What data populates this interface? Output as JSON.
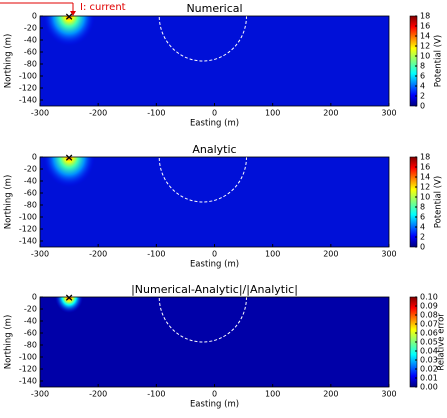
{
  "annotation": "I: current",
  "chart_data": [
    {
      "type": "heatmap",
      "title": "Numerical",
      "xlabel": "Easting (m)",
      "ylabel": "Northing (m)",
      "colorbar_label": "Potential (V)",
      "xlim": [
        -300,
        300
      ],
      "ylim": [
        -150,
        0
      ],
      "xticks": [
        -300,
        -200,
        -100,
        0,
        100,
        200,
        300
      ],
      "yticks": [
        0,
        -20,
        -40,
        -60,
        -80,
        -100,
        -120,
        -140
      ],
      "clim": [
        0,
        18
      ],
      "cticks": [
        0,
        2,
        4,
        6,
        8,
        10,
        12,
        14,
        16,
        18
      ],
      "source": {
        "x": -250,
        "y": 0
      },
      "circle": {
        "x": -20,
        "y": 0,
        "r": 75
      }
    },
    {
      "type": "heatmap",
      "title": "Analytic",
      "xlabel": "Easting (m)",
      "ylabel": "Northing (m)",
      "colorbar_label": "Potential (V)",
      "xlim": [
        -300,
        300
      ],
      "ylim": [
        -150,
        0
      ],
      "xticks": [
        -300,
        -200,
        -100,
        0,
        100,
        200,
        300
      ],
      "yticks": [
        0,
        -20,
        -40,
        -60,
        -80,
        -100,
        -120,
        -140
      ],
      "clim": [
        0,
        18
      ],
      "cticks": [
        0,
        2,
        4,
        6,
        8,
        10,
        12,
        14,
        16,
        18
      ],
      "source": {
        "x": -250,
        "y": 0
      },
      "circle": {
        "x": -20,
        "y": 0,
        "r": 75
      }
    },
    {
      "type": "heatmap",
      "title": "|Numerical-Analytic|/|Analytic|",
      "xlabel": "Easting (m)",
      "ylabel": "Northing (m)",
      "colorbar_label": "Relative error",
      "xlim": [
        -300,
        300
      ],
      "ylim": [
        -150,
        0
      ],
      "xticks": [
        -300,
        -200,
        -100,
        0,
        100,
        200,
        300
      ],
      "yticks": [
        0,
        -20,
        -40,
        -60,
        -80,
        -100,
        -120,
        -140
      ],
      "clim": [
        0,
        0.1
      ],
      "cticks": [
        {
          "value": 0,
          "label": "0.00"
        },
        {
          "value": 0.01,
          "label": "0.01"
        },
        {
          "value": 0.02,
          "label": "0.02"
        },
        {
          "value": 0.03,
          "label": "0.03"
        },
        {
          "value": 0.04,
          "label": "0.04"
        },
        {
          "value": 0.05,
          "label": "0.05"
        },
        {
          "value": 0.06,
          "label": "0.06"
        },
        {
          "value": 0.07,
          "label": "0.07"
        },
        {
          "value": 0.08,
          "label": "0.08"
        },
        {
          "value": 0.09,
          "label": "0.09"
        },
        {
          "value": 0.1,
          "label": "0.10"
        }
      ],
      "source": {
        "x": -250,
        "y": 0
      },
      "circle": {
        "x": -20,
        "y": 0,
        "r": 75
      }
    }
  ]
}
